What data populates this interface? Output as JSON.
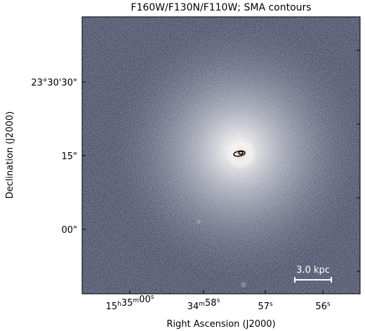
{
  "figure": {
    "title": "F160W/F130N/F110W; SMA contours",
    "x_label": "Right Ascension (J2000)",
    "y_label": "Declination (J2000)",
    "x_ticks": [
      [
        [
          "15",
          "h"
        ],
        [
          "35",
          "m"
        ],
        [
          "00",
          "s"
        ]
      ],
      [
        [
          "34",
          "m"
        ],
        [
          "58",
          "s"
        ]
      ],
      [
        [
          "57",
          "s"
        ]
      ],
      [
        [
          "56",
          "s"
        ]
      ]
    ],
    "y_ticks": [
      "23°30'30\"",
      "15\"",
      "00\""
    ],
    "scale_bar": "3.0 kpc"
  }
}
